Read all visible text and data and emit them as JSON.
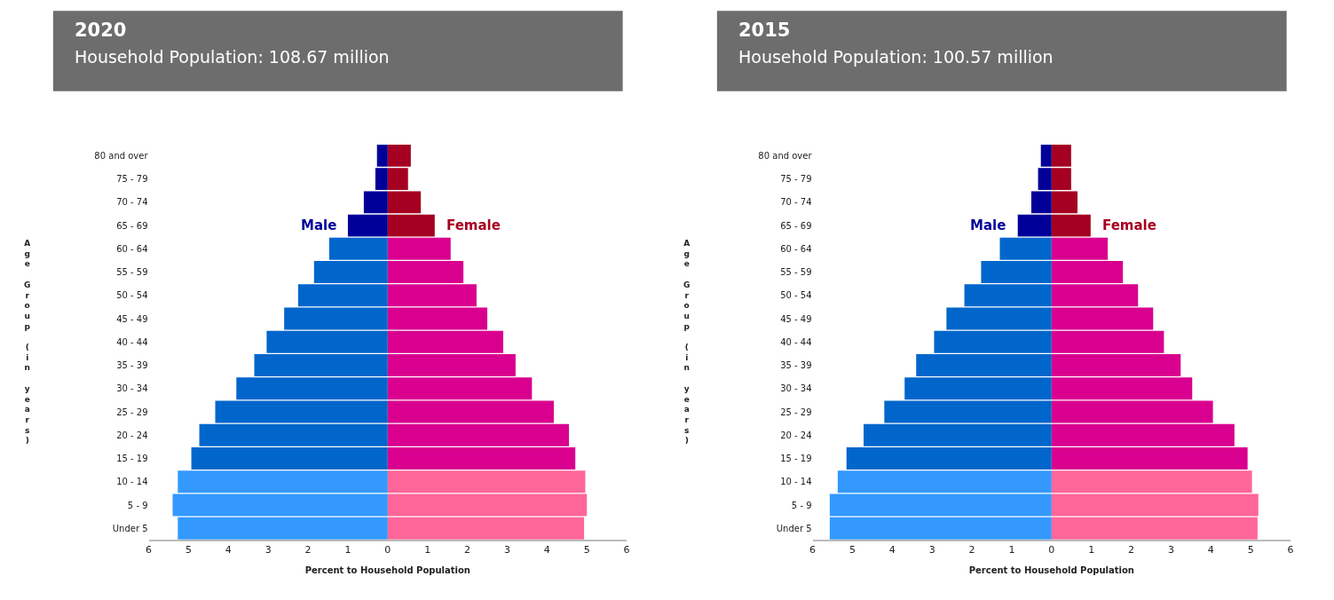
{
  "chart_data": [
    {
      "type": "bar",
      "orientation": "horizontal",
      "stacked": true,
      "title": "2020",
      "subtitle": "Household Population: 108.67 million",
      "xlabel": "Percent to Household Population",
      "ylabel": "Age Group (in years)",
      "categories": [
        "80 and over",
        "75 - 79",
        "70 - 74",
        "65 - 69",
        "60 - 64",
        "55 - 59",
        "50 - 54",
        "45 - 49",
        "40 - 44",
        "35 - 39",
        "30 - 34",
        "25 - 29",
        "20 - 24",
        "15 - 19",
        "10 - 14",
        "5 - 9",
        "Under 5"
      ],
      "series": [
        {
          "name": "Male",
          "colors": [
            "#000099",
            "#000099",
            "#000099",
            "#000099",
            "#0066cc",
            "#0066cc",
            "#0066cc",
            "#0066cc",
            "#0066cc",
            "#0066cc",
            "#0066cc",
            "#0066cc",
            "#0066cc",
            "#0066cc",
            "#3399ff",
            "#3399ff",
            "#3399ff"
          ],
          "values": [
            -0.27,
            -0.31,
            -0.6,
            -1.0,
            -1.47,
            -1.85,
            -2.25,
            -2.6,
            -3.04,
            -3.35,
            -3.8,
            -4.33,
            -4.73,
            -4.93,
            -5.27,
            -5.4,
            -5.27
          ]
        },
        {
          "name": "Female",
          "colors": [
            "#a50021",
            "#a50021",
            "#a50021",
            "#a50021",
            "#d9008f",
            "#d9008f",
            "#d9008f",
            "#d9008f",
            "#d9008f",
            "#d9008f",
            "#d9008f",
            "#d9008f",
            "#d9008f",
            "#d9008f",
            "#ff6699",
            "#ff6699",
            "#ff6699"
          ],
          "values": [
            0.58,
            0.51,
            0.83,
            1.18,
            1.58,
            1.9,
            2.23,
            2.5,
            2.9,
            3.21,
            3.62,
            4.17,
            4.55,
            4.71,
            4.96,
            5.0,
            4.93
          ]
        }
      ],
      "xlim": [
        -6,
        6
      ],
      "xticks": [
        {
          "value": -6,
          "label": "6"
        },
        {
          "value": -5,
          "label": "5"
        },
        {
          "value": -4,
          "label": "4"
        },
        {
          "value": -3,
          "label": "3"
        },
        {
          "value": -2,
          "label": "2"
        },
        {
          "value": -1,
          "label": "1"
        },
        0,
        1,
        2,
        3,
        4,
        5,
        6
      ]
    },
    {
      "type": "bar",
      "orientation": "horizontal",
      "stacked": true,
      "title": "2015",
      "subtitle": "Household Population: 100.57 million",
      "xlabel": "Percent to Household Population",
      "ylabel": "Age Group (in years)",
      "categories": [
        "80 and over",
        "75 - 79",
        "70 - 74",
        "65 - 69",
        "60 - 64",
        "55 - 59",
        "50 - 54",
        "45 - 49",
        "40 - 44",
        "35 - 39",
        "30 - 34",
        "25 - 29",
        "20 - 24",
        "15 - 19",
        "10 - 14",
        "5 - 9",
        "Under 5"
      ],
      "series": [
        {
          "name": "Male",
          "colors": [
            "#000099",
            "#000099",
            "#000099",
            "#000099",
            "#0066cc",
            "#0066cc",
            "#0066cc",
            "#0066cc",
            "#0066cc",
            "#0066cc",
            "#0066cc",
            "#0066cc",
            "#0066cc",
            "#0066cc",
            "#3399ff",
            "#3399ff",
            "#3399ff"
          ],
          "values": [
            -0.27,
            -0.34,
            -0.51,
            -0.85,
            -1.3,
            -1.77,
            -2.19,
            -2.64,
            -2.95,
            -3.4,
            -3.69,
            -4.2,
            -4.72,
            -5.15,
            -5.37,
            -5.57,
            -5.57
          ]
        },
        {
          "name": "Female",
          "colors": [
            "#a50021",
            "#a50021",
            "#a50021",
            "#a50021",
            "#d9008f",
            "#d9008f",
            "#d9008f",
            "#d9008f",
            "#d9008f",
            "#d9008f",
            "#d9008f",
            "#d9008f",
            "#d9008f",
            "#d9008f",
            "#ff6699",
            "#ff6699",
            "#ff6699"
          ],
          "values": [
            0.49,
            0.49,
            0.65,
            0.98,
            1.41,
            1.79,
            2.17,
            2.55,
            2.82,
            3.24,
            3.53,
            4.05,
            4.59,
            4.92,
            5.03,
            5.19,
            5.17
          ]
        }
      ],
      "xlim": [
        -6,
        6
      ],
      "xticks": [
        {
          "value": -6,
          "label": "6"
        },
        {
          "value": -5,
          "label": "5"
        },
        {
          "value": -4,
          "label": "4"
        },
        {
          "value": -3,
          "label": "3"
        },
        {
          "value": -2,
          "label": "2"
        },
        {
          "value": -1,
          "label": "1"
        },
        0,
        1,
        2,
        3,
        4,
        5,
        6
      ]
    }
  ]
}
